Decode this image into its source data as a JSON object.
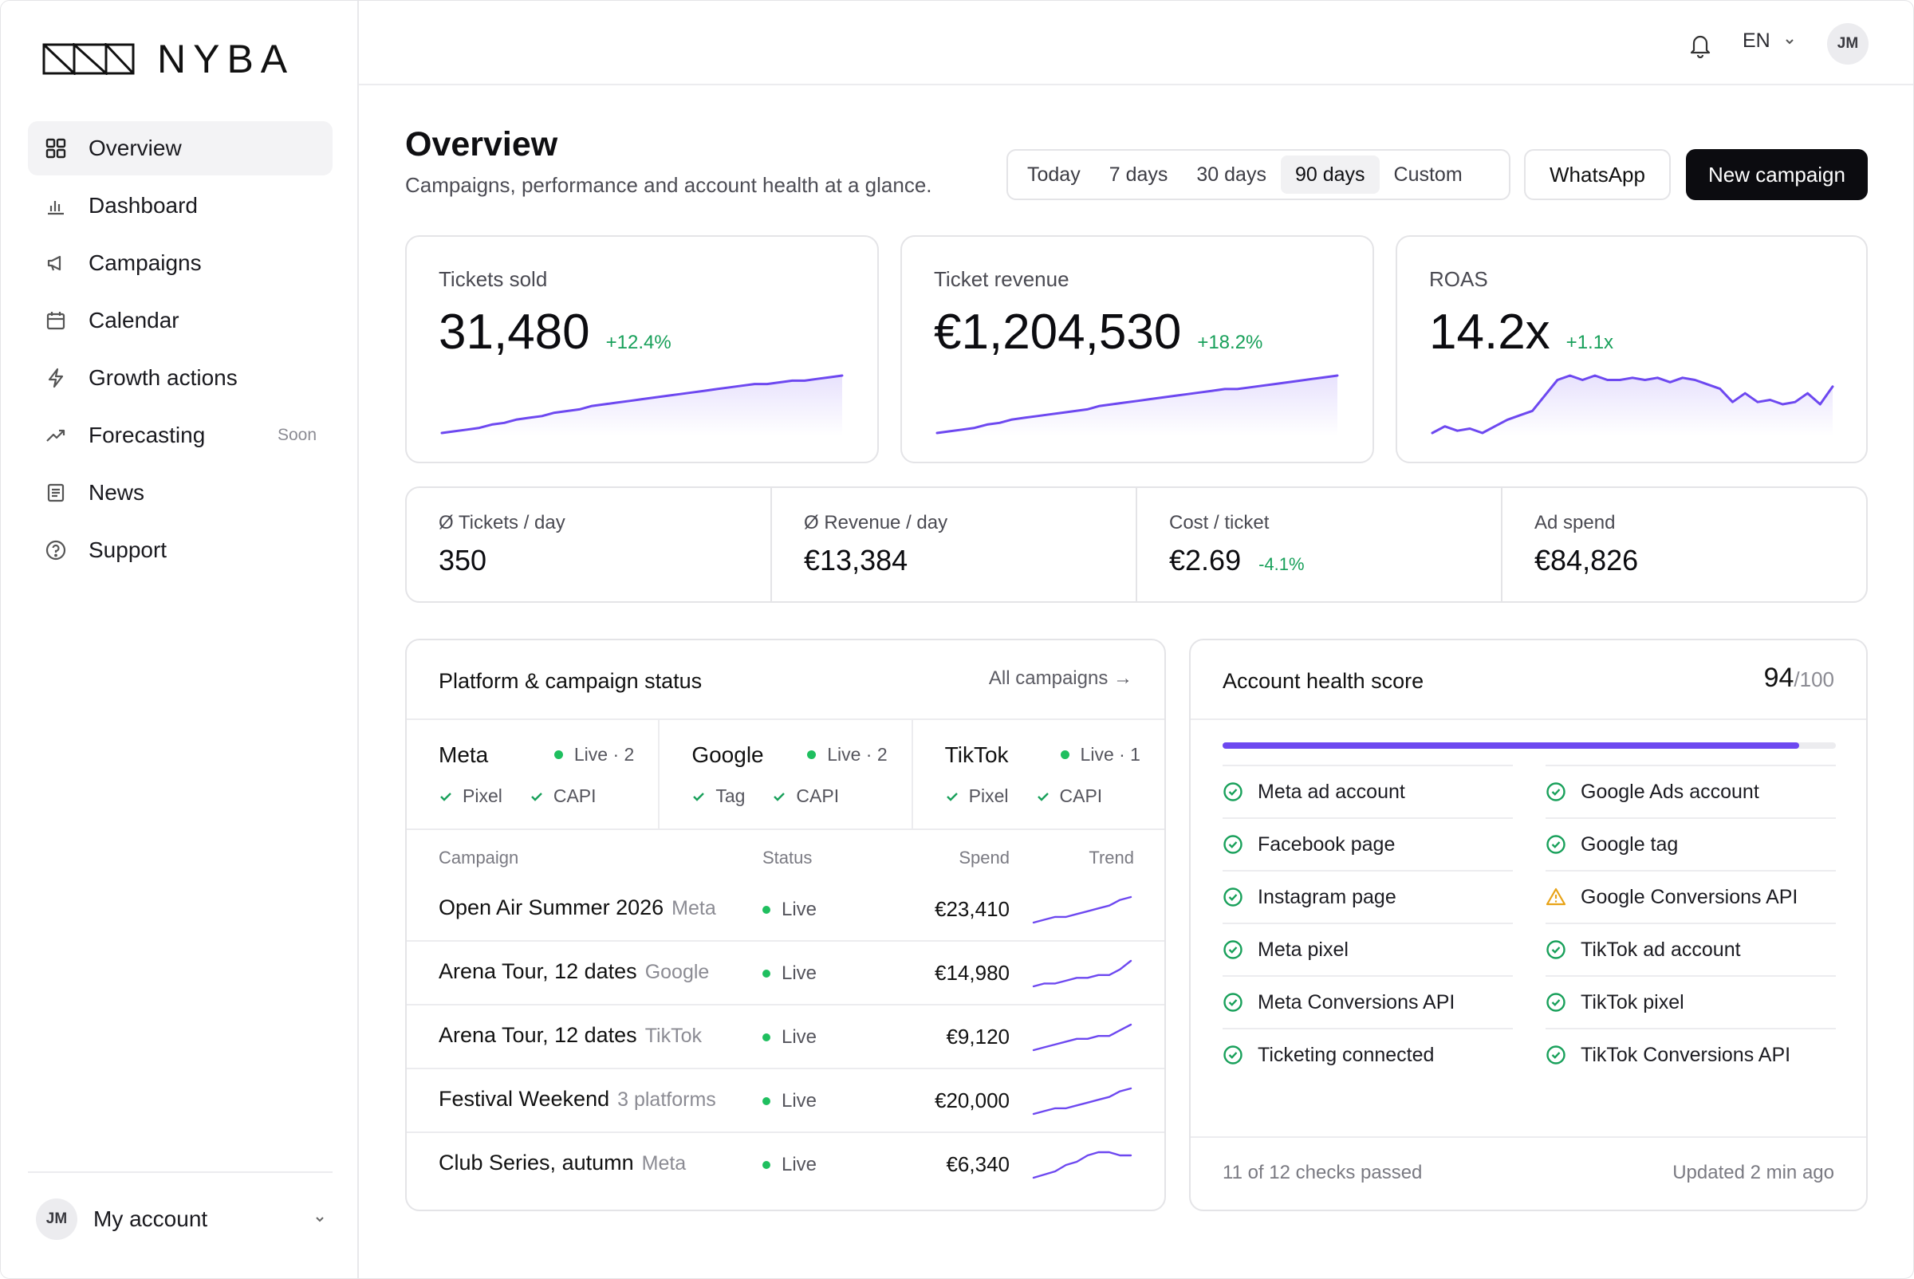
{
  "app": {
    "brand": "NYBA"
  },
  "sidebar": {
    "items": [
      {
        "label": "Overview",
        "icon": "grid-icon",
        "active": true
      },
      {
        "label": "Dashboard",
        "icon": "bar-chart-icon"
      },
      {
        "label": "Campaigns",
        "icon": "megaphone-icon"
      },
      {
        "label": "Calendar",
        "icon": "calendar-icon"
      },
      {
        "label": "Growth actions",
        "icon": "lightning-icon"
      },
      {
        "label": "Forecasting",
        "icon": "trend-up-icon",
        "badge": "Soon"
      },
      {
        "label": "News",
        "icon": "newspaper-icon"
      },
      {
        "label": "Support",
        "icon": "help-circle-icon"
      }
    ],
    "account": {
      "initials": "JM",
      "label": "My account"
    }
  },
  "topbar": {
    "language": "EN",
    "user_initials": "JM"
  },
  "header": {
    "title": "Overview",
    "subtitle": "Campaigns, performance and account health at a glance.",
    "ranges": [
      "Today",
      "7 days",
      "30 days",
      "90 days",
      "Custom"
    ],
    "active_range": "90 days",
    "whatsapp_label": "WhatsApp",
    "new_campaign_label": "New campaign"
  },
  "kpis": [
    {
      "label": "Tickets sold",
      "value": "31,480",
      "delta": "+12.4%"
    },
    {
      "label": "Ticket revenue",
      "value": "€1,204,530",
      "delta": "+18.2%"
    },
    {
      "label": "ROAS",
      "value": "14.2x",
      "delta": "+1.1x"
    }
  ],
  "chart_data": [
    {
      "type": "area",
      "title": "",
      "values": [
        2,
        3,
        4,
        5,
        7,
        8,
        10,
        11,
        12,
        14,
        15,
        16,
        18,
        19,
        20,
        21,
        22,
        23,
        24,
        25,
        26,
        27,
        28,
        29,
        30,
        31,
        31,
        32,
        33,
        33,
        34,
        35,
        36
      ]
    },
    {
      "type": "area",
      "title": "",
      "values": [
        2,
        3,
        4,
        5,
        7,
        8,
        10,
        11,
        12,
        13,
        14,
        15,
        16,
        18,
        19,
        20,
        21,
        22,
        23,
        24,
        25,
        26,
        27,
        28,
        28,
        29,
        30,
        31,
        32,
        33,
        34,
        35,
        36
      ]
    },
    {
      "type": "area",
      "title": "",
      "values": [
        6,
        9,
        7,
        8,
        6,
        9,
        12,
        14,
        16,
        23,
        30,
        32,
        30,
        32,
        30,
        30,
        31,
        30,
        31,
        29,
        31,
        30,
        28,
        26,
        20,
        24,
        20,
        21,
        19,
        20,
        24,
        19,
        27
      ]
    }
  ],
  "stats": [
    {
      "label": "Ø Tickets / day",
      "value": "350",
      "delta": ""
    },
    {
      "label": "Ø Revenue / day",
      "value": "€13,384",
      "delta": ""
    },
    {
      "label": "Cost / ticket",
      "value": "€2.69",
      "delta": "-4.1%"
    },
    {
      "label": "Ad spend",
      "value": "€84,826",
      "delta": ""
    }
  ],
  "platform_card": {
    "title": "Platform & campaign status",
    "link": "All campaigns →",
    "platforms": [
      {
        "name": "Meta",
        "status": "Live · 2",
        "checks": [
          "Pixel",
          "CAPI"
        ]
      },
      {
        "name": "Google",
        "status": "Live · 2",
        "checks": [
          "Tag",
          "CAPI"
        ]
      },
      {
        "name": "TikTok",
        "status": "Live · 1",
        "checks": [
          "Pixel",
          "CAPI"
        ]
      }
    ],
    "columns": [
      "Campaign",
      "Status",
      "Spend",
      "Trend"
    ],
    "rows": [
      {
        "name": "Open Air Summer 2026",
        "platform": "Meta",
        "status": "Live",
        "spend": "€23,410",
        "trend": [
          1,
          2,
          3,
          3,
          4,
          5,
          6,
          7,
          9,
          10
        ]
      },
      {
        "name": "Arena Tour, 12 dates",
        "platform": "Google",
        "status": "Live",
        "spend": "€14,980",
        "trend": [
          1,
          2,
          2,
          3,
          4,
          4,
          5,
          5,
          7,
          10
        ]
      },
      {
        "name": "Arena Tour, 12 dates",
        "platform": "TikTok",
        "status": "Live",
        "spend": "€9,120",
        "trend": [
          1,
          2,
          3,
          4,
          5,
          5,
          6,
          6,
          8,
          10
        ]
      },
      {
        "name": "Festival Weekend",
        "platform": "3 platforms",
        "status": "Live",
        "spend": "€20,000",
        "trend": [
          1,
          2,
          3,
          3,
          4,
          5,
          6,
          7,
          9,
          10
        ]
      },
      {
        "name": "Club Series, autumn",
        "platform": "Meta",
        "status": "Live",
        "spend": "€6,340",
        "trend": [
          1,
          2,
          3,
          5,
          6,
          8,
          9,
          9,
          8,
          8
        ]
      }
    ]
  },
  "health": {
    "title": "Account health score",
    "score": "94",
    "score_max": "/100",
    "score_fraction": 0.94,
    "left": [
      {
        "label": "Meta ad account",
        "ok": true
      },
      {
        "label": "Facebook page",
        "ok": true
      },
      {
        "label": "Instagram page",
        "ok": true
      },
      {
        "label": "Meta pixel",
        "ok": true
      },
      {
        "label": "Meta Conversions API",
        "ok": true
      },
      {
        "label": "Ticketing connected",
        "ok": true
      }
    ],
    "right": [
      {
        "label": "Google Ads account",
        "ok": true
      },
      {
        "label": "Google tag",
        "ok": true
      },
      {
        "label": "Google Conversions API",
        "ok": false
      },
      {
        "label": "TikTok ad account",
        "ok": true
      },
      {
        "label": "TikTok pixel",
        "ok": true
      },
      {
        "label": "TikTok Conversions API",
        "ok": true
      }
    ],
    "footer_left": "11 of 12 checks passed",
    "footer_right": "Updated 2 min ago"
  },
  "colors": {
    "accent": "#6d48f0",
    "positive": "#18a05a",
    "live": "#1fbf5f",
    "warning": "#e8a317"
  }
}
